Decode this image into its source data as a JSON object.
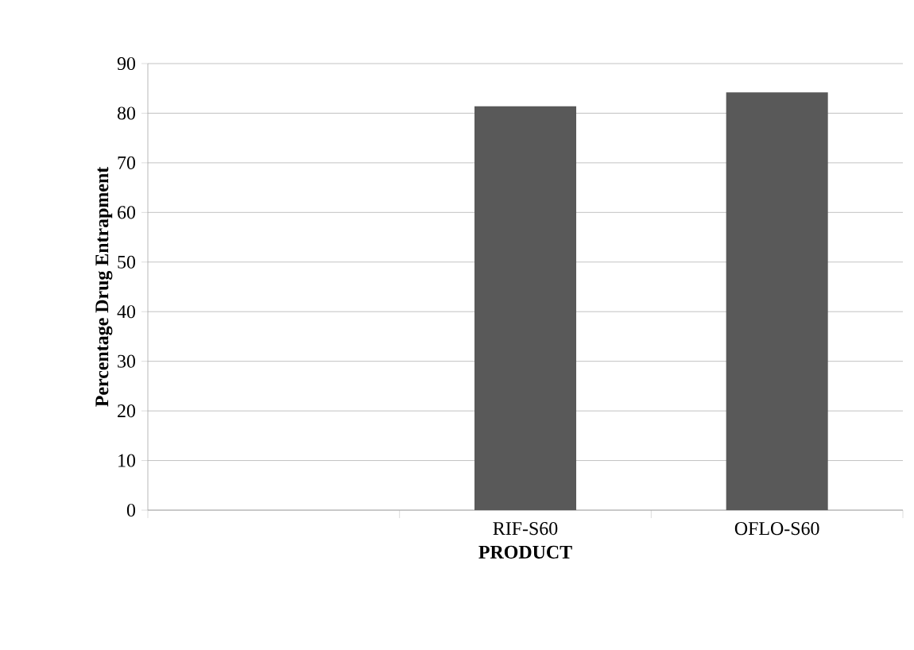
{
  "chart_data": {
    "type": "bar",
    "xlabel": "PRODUCT",
    "ylabel": "Percentage Drug Entrapment",
    "categories": [
      null,
      "RIF-S60",
      "OFLO-S60"
    ],
    "values": [
      null,
      81.4,
      84.2
    ],
    "color": "#595959",
    "ylim": [
      0,
      90
    ],
    "yticks": [
      0,
      10,
      20,
      30,
      40,
      50,
      60,
      70,
      80,
      90
    ],
    "grid": "y"
  }
}
